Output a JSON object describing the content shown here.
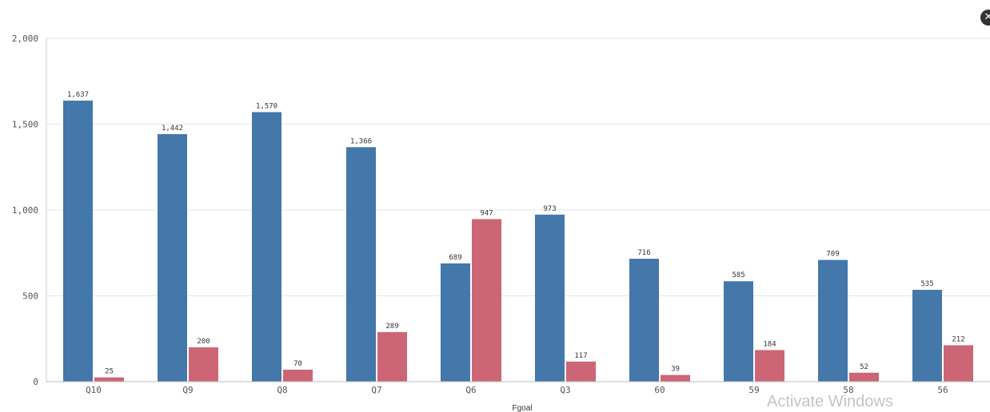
{
  "close_button": {
    "icon": "close-icon",
    "glyph": "✕"
  },
  "watermark": {
    "text": "Activate Windows"
  },
  "chart_data": {
    "type": "bar",
    "title": "",
    "xlabel": "Fgoal",
    "ylabel": "",
    "ylim": [
      0,
      2000
    ],
    "yticks": [
      0,
      500,
      1000,
      1500,
      2000
    ],
    "ytick_labels": [
      "0",
      "500",
      "1,000",
      "1,500",
      "2,000"
    ],
    "grid": true,
    "legend": "none",
    "categories": [
      "Q10",
      "Q9",
      "Q8",
      "Q7",
      "Q6",
      "Q3",
      "60",
      "59",
      "58",
      "56"
    ],
    "series": [
      {
        "color": "#4477aa",
        "values": [
          1637,
          1442,
          1570,
          1366,
          689,
          973,
          716,
          585,
          709,
          535
        ],
        "labels": [
          "1,637",
          "1,442",
          "1,570",
          "1,366",
          "689",
          "973",
          "716",
          "585",
          "709",
          "535"
        ]
      },
      {
        "color": "#cc6677",
        "values": [
          25,
          200,
          70,
          289,
          947,
          117,
          39,
          184,
          52,
          212
        ],
        "labels": [
          "25",
          "200",
          "70",
          "289",
          "947",
          "117",
          "39",
          "184",
          "52",
          "212"
        ]
      }
    ]
  }
}
